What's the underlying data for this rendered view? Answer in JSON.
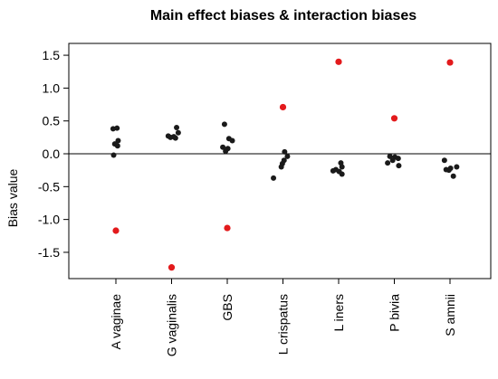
{
  "chart_data": {
    "type": "scatter",
    "title": "Main effect biases & interaction biases",
    "xlabel": "",
    "ylabel": "Bias value",
    "ylim": [
      -1.9,
      1.68
    ],
    "yticks": [
      -1.5,
      -1.0,
      -0.5,
      0.0,
      0.5,
      1.0,
      1.5
    ],
    "ytick_labels": [
      "-1.5",
      "-1.0",
      "-0.5",
      "0.0",
      "0.5",
      "1.0",
      "1.5"
    ],
    "grid": false,
    "reference_line_y": 0,
    "categories": [
      "A vaginae",
      "G vaginalis",
      "GBS",
      "L crispatus",
      "L iners",
      "P bivia",
      "S amnii"
    ],
    "series": [
      {
        "color": "#1a1a1a",
        "points": [
          {
            "category": "A vaginae",
            "jitter": -0.05,
            "y": 0.38
          },
          {
            "category": "A vaginae",
            "jitter": 0.02,
            "y": 0.39
          },
          {
            "category": "A vaginae",
            "jitter": 0.04,
            "y": 0.2
          },
          {
            "category": "A vaginae",
            "jitter": -0.02,
            "y": 0.15
          },
          {
            "category": "A vaginae",
            "jitter": 0.03,
            "y": 0.12
          },
          {
            "category": "A vaginae",
            "jitter": -0.04,
            "y": -0.02
          },
          {
            "category": "G vaginalis",
            "jitter": 0.09,
            "y": 0.4
          },
          {
            "category": "G vaginalis",
            "jitter": 0.12,
            "y": 0.32
          },
          {
            "category": "G vaginalis",
            "jitter": -0.06,
            "y": 0.27
          },
          {
            "category": "G vaginalis",
            "jitter": 0.04,
            "y": 0.26
          },
          {
            "category": "G vaginalis",
            "jitter": -0.02,
            "y": 0.25
          },
          {
            "category": "G vaginalis",
            "jitter": 0.07,
            "y": 0.24
          },
          {
            "category": "GBS",
            "jitter": -0.05,
            "y": 0.45
          },
          {
            "category": "GBS",
            "jitter": 0.03,
            "y": 0.23
          },
          {
            "category": "GBS",
            "jitter": 0.09,
            "y": 0.2
          },
          {
            "category": "GBS",
            "jitter": -0.08,
            "y": 0.1
          },
          {
            "category": "GBS",
            "jitter": 0.01,
            "y": 0.08
          },
          {
            "category": "GBS",
            "jitter": -0.03,
            "y": 0.04
          },
          {
            "category": "L crispatus",
            "jitter": 0.03,
            "y": 0.03
          },
          {
            "category": "L crispatus",
            "jitter": 0.08,
            "y": -0.04
          },
          {
            "category": "L crispatus",
            "jitter": 0.02,
            "y": -0.1
          },
          {
            "category": "L crispatus",
            "jitter": -0.01,
            "y": -0.15
          },
          {
            "category": "L crispatus",
            "jitter": -0.03,
            "y": -0.2
          },
          {
            "category": "L crispatus",
            "jitter": -0.17,
            "y": -0.37
          },
          {
            "category": "L iners",
            "jitter": 0.04,
            "y": -0.14
          },
          {
            "category": "L iners",
            "jitter": -0.05,
            "y": -0.24
          },
          {
            "category": "L iners",
            "jitter": -0.1,
            "y": -0.26
          },
          {
            "category": "L iners",
            "jitter": 0.06,
            "y": -0.2
          },
          {
            "category": "L iners",
            "jitter": 0.01,
            "y": -0.27
          },
          {
            "category": "L iners",
            "jitter": 0.06,
            "y": -0.31
          },
          {
            "category": "P bivia",
            "jitter": -0.08,
            "y": -0.04
          },
          {
            "category": "P bivia",
            "jitter": 0.01,
            "y": -0.05
          },
          {
            "category": "P bivia",
            "jitter": 0.07,
            "y": -0.07
          },
          {
            "category": "P bivia",
            "jitter": -0.03,
            "y": -0.1
          },
          {
            "category": "P bivia",
            "jitter": -0.12,
            "y": -0.14
          },
          {
            "category": "P bivia",
            "jitter": 0.08,
            "y": -0.18
          },
          {
            "category": "S amnii",
            "jitter": -0.1,
            "y": -0.1
          },
          {
            "category": "S amnii",
            "jitter": 0.12,
            "y": -0.2
          },
          {
            "category": "S amnii",
            "jitter": 0.01,
            "y": -0.22
          },
          {
            "category": "S amnii",
            "jitter": -0.07,
            "y": -0.24
          },
          {
            "category": "S amnii",
            "jitter": -0.02,
            "y": -0.25
          },
          {
            "category": "S amnii",
            "jitter": 0.06,
            "y": -0.34
          }
        ]
      },
      {
        "color": "#e31a1c",
        "points": [
          {
            "category": "A vaginae",
            "jitter": 0.0,
            "y": -1.17
          },
          {
            "category": "G vaginalis",
            "jitter": 0.0,
            "y": -1.73
          },
          {
            "category": "GBS",
            "jitter": 0.0,
            "y": -1.13
          },
          {
            "category": "L crispatus",
            "jitter": 0.0,
            "y": 0.71
          },
          {
            "category": "L iners",
            "jitter": 0.0,
            "y": 1.4
          },
          {
            "category": "P bivia",
            "jitter": 0.0,
            "y": 0.54
          },
          {
            "category": "S amnii",
            "jitter": 0.0,
            "y": 1.39
          }
        ]
      }
    ]
  }
}
